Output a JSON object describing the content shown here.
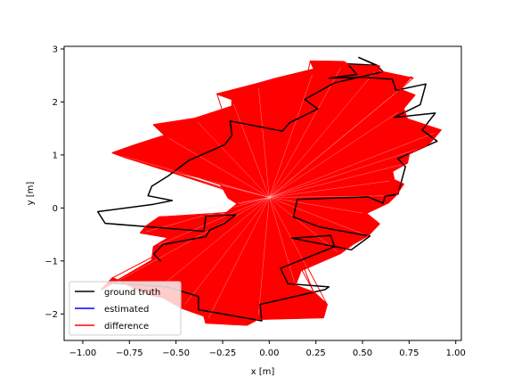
{
  "chart_data": {
    "type": "line",
    "title": "",
    "xlabel": "x [m]",
    "ylabel": "y [m]",
    "xlim": [
      -1.1,
      1.03
    ],
    "ylim": [
      -2.5,
      3.05
    ],
    "xticks": [
      -1.0,
      -0.75,
      -0.5,
      -0.25,
      0.0,
      0.25,
      0.5,
      0.75,
      1.0
    ],
    "xtick_labels": [
      "−1.00",
      "−0.75",
      "−0.50",
      "−0.25",
      "0.00",
      "0.25",
      "0.50",
      "0.75",
      "1.00"
    ],
    "yticks": [
      -2,
      -1,
      0,
      1,
      2,
      3
    ],
    "ytick_labels": [
      "−2",
      "−1",
      "0",
      "1",
      "2",
      "3"
    ],
    "grid": false,
    "legend_position": "lower-left",
    "series": [
      {
        "name": "ground truth",
        "color": "#000000",
        "x": [
          -0.87,
          -0.55,
          -0.38,
          -0.38,
          -0.04,
          -0.05,
          0.3,
          0.32,
          0.1,
          0.06,
          0.35,
          0.33,
          0.12,
          0.44,
          0.54,
          0.27,
          0.13,
          0.15,
          0.53,
          0.61,
          0.62,
          0.69,
          0.73,
          0.69,
          0.9,
          0.82,
          0.89,
          0.67,
          0.81,
          0.84,
          0.68,
          0.66,
          0.49,
          0.32,
          0.47,
          0.42,
          0.58,
          0.48,
          0.58,
          0.61,
          0.35,
          0.19,
          0.26,
          0.11,
          0.07,
          -0.21,
          -0.2,
          -0.24,
          -0.43,
          -0.54,
          -0.63,
          -0.65,
          -0.52,
          -0.62,
          -0.92,
          -0.88,
          -0.35,
          -0.34,
          -0.18,
          -0.24,
          -0.32,
          -0.34,
          -0.57,
          -0.62,
          -0.58
        ],
        "y": [
          -1.41,
          -1.49,
          -1.67,
          -1.92,
          -2.13,
          -1.82,
          -1.54,
          -1.49,
          -1.43,
          -1.14,
          -0.73,
          -0.52,
          -0.57,
          -0.79,
          -0.53,
          -0.36,
          -0.17,
          0.16,
          0.21,
          0.09,
          0.22,
          0.26,
          0.78,
          0.93,
          1.26,
          1.47,
          1.79,
          1.71,
          1.95,
          2.34,
          2.22,
          2.43,
          2.47,
          2.45,
          2.52,
          2.72,
          2.69,
          2.84,
          2.68,
          2.57,
          2.36,
          2.05,
          1.87,
          1.61,
          1.45,
          1.64,
          1.37,
          1.19,
          0.9,
          0.61,
          0.41,
          0.23,
          0.14,
          0.07,
          -0.07,
          -0.29,
          -0.44,
          -0.15,
          -0.13,
          -0.29,
          -0.42,
          -0.54,
          -0.69,
          -0.87,
          -1.01
        ]
      },
      {
        "name": "estimated",
        "color": "#0000ff",
        "x": [
          -0.1,
          -0.08,
          -0.05,
          -0.02,
          0.02,
          0.05,
          0.08,
          0.1,
          0.08,
          0.05,
          0.02,
          -0.02,
          -0.05,
          -0.08,
          -0.1
        ],
        "y": [
          0.0,
          0.08,
          0.12,
          0.1,
          0.06,
          0.02,
          -0.02,
          0.0,
          0.05,
          0.1,
          0.12,
          0.08,
          0.02,
          -0.05,
          0.0
        ]
      },
      {
        "name": "difference",
        "color": "#ff0000",
        "x": [
          -0.9,
          -0.84,
          -0.64,
          -0.57,
          -0.47,
          -0.35,
          -0.34,
          -0.12,
          -0.06,
          0.29,
          0.31,
          0.24,
          0.14,
          0.17,
          0.38,
          0.45,
          0.53,
          0.59,
          0.52,
          0.64,
          0.68,
          0.72,
          0.67,
          0.66,
          0.74,
          0.75,
          0.84,
          0.87,
          0.92,
          0.74,
          0.72,
          0.78,
          0.7,
          0.76,
          0.77,
          0.59,
          0.59,
          0.43,
          0.4,
          0.22,
          0.24,
          0.04,
          -0.06,
          -0.28,
          -0.2,
          -0.2,
          -0.4,
          -0.62,
          -0.56,
          -0.72,
          -0.84,
          -0.77,
          -0.57,
          -0.38,
          -0.26,
          -0.22,
          -0.17,
          -0.24,
          -0.59,
          -0.66,
          -0.69,
          -0.54,
          -0.62,
          -0.63
        ],
        "y": [
          -1.54,
          -1.32,
          -1.64,
          -1.69,
          -1.89,
          -2.04,
          -2.17,
          -2.21,
          -2.1,
          -2.07,
          -1.82,
          -1.59,
          -1.46,
          -1.18,
          -0.86,
          -0.68,
          -0.52,
          -0.3,
          -0.1,
          0.1,
          0.24,
          0.45,
          0.53,
          0.69,
          0.85,
          1.02,
          1.17,
          1.26,
          1.47,
          1.68,
          1.88,
          2.13,
          2.24,
          2.47,
          2.45,
          2.58,
          2.68,
          2.69,
          2.76,
          2.77,
          2.62,
          2.45,
          2.35,
          2.15,
          2.05,
          1.92,
          1.69,
          1.57,
          1.37,
          1.19,
          1.04,
          0.95,
          0.74,
          0.58,
          0.44,
          0.19,
          0.08,
          -0.12,
          -0.17,
          -0.34,
          -0.47,
          -0.56,
          -0.73,
          -0.99
        ]
      }
    ]
  }
}
